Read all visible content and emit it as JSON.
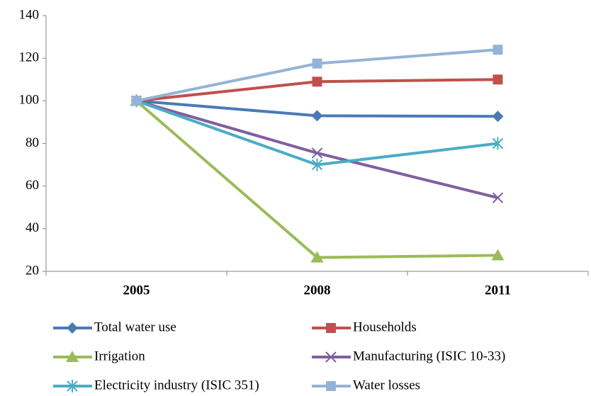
{
  "chart_data": {
    "type": "line",
    "categories": [
      "2005",
      "2008",
      "2011"
    ],
    "series": [
      {
        "name": "Total water use",
        "color": "#4a7ab5",
        "marker": "diamond",
        "values": [
          100,
          93,
          92.7
        ]
      },
      {
        "name": "Households",
        "color": "#c0504d",
        "marker": "square",
        "values": [
          100,
          109,
          110
        ]
      },
      {
        "name": "Irrigation",
        "color": "#9bbb59",
        "marker": "triangle",
        "values": [
          100,
          26.5,
          27.5
        ]
      },
      {
        "name": "Manufacturing (ISIC 10-33)",
        "color": "#7f5f9f",
        "marker": "x",
        "values": [
          100,
          75.5,
          54.5
        ]
      },
      {
        "name": "Electricity industry (ISIC 351)",
        "color": "#4bacc6",
        "marker": "asterisk",
        "values": [
          100,
          70,
          80
        ]
      },
      {
        "name": "Water losses",
        "color": "#95b3d7",
        "marker": "square",
        "values": [
          100,
          117.5,
          124
        ]
      }
    ],
    "ylim": [
      20,
      140
    ],
    "yticks": [
      20,
      40,
      60,
      80,
      100,
      120,
      140
    ],
    "grid": false,
    "legend": "bottom"
  }
}
